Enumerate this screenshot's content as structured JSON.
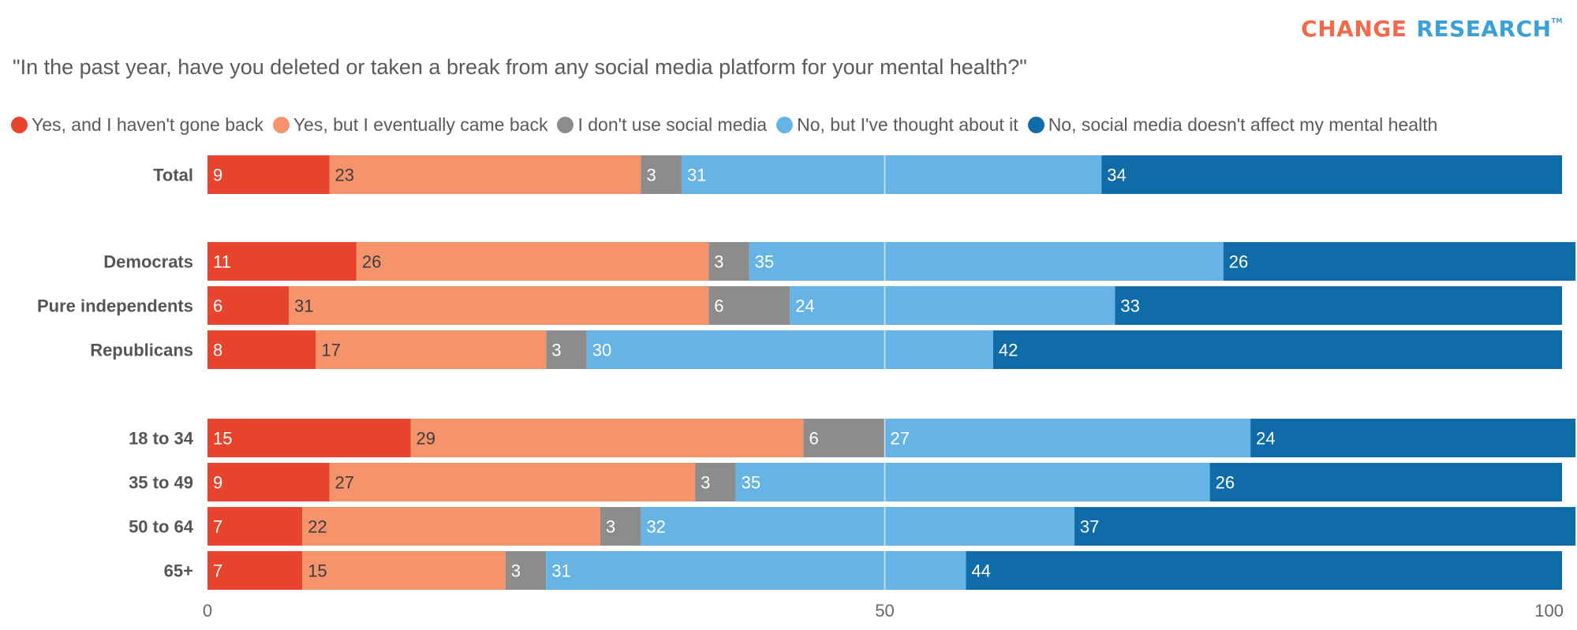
{
  "brand": {
    "word1": "CHANGE",
    "word2": "RESEARCH",
    "tm": "TM"
  },
  "chart_data": {
    "type": "bar",
    "orientation": "horizontal",
    "stacked": true,
    "title": "\"In the past year, have you deleted or taken a break from any social media platform for your mental health?\"",
    "xlabel": "",
    "ylabel": "",
    "xlim": [
      0,
      100
    ],
    "xticks": [
      0,
      50,
      100
    ],
    "grid": "vertical line at 50",
    "legend_position": "top",
    "categories": [
      "Total",
      "Democrats",
      "Pure independents",
      "Republicans",
      "18 to 34",
      "35 to 49",
      "50 to 64",
      "65+"
    ],
    "groups": [
      [
        0
      ],
      [
        1,
        2,
        3
      ],
      [
        4,
        5,
        6,
        7
      ]
    ],
    "series": [
      {
        "name": "Yes, and I haven't gone back",
        "color": "#e8432c",
        "label_color": "#ffffff",
        "values": [
          9,
          11,
          6,
          8,
          15,
          9,
          7,
          7
        ]
      },
      {
        "name": "Yes, but I eventually came back",
        "color": "#f5936c",
        "label_color": "#3d3d3d",
        "values": [
          23,
          26,
          31,
          17,
          29,
          27,
          22,
          15
        ]
      },
      {
        "name": "I don't use social media",
        "color": "#8c8c8c",
        "label_color": "#ffffff",
        "values": [
          3,
          3,
          6,
          3,
          6,
          3,
          3,
          3
        ]
      },
      {
        "name": "No, but I've thought about it",
        "color": "#66b4e5",
        "label_color": "#ffffff",
        "values": [
          31,
          35,
          24,
          30,
          27,
          35,
          32,
          31
        ]
      },
      {
        "name": "No, social media doesn't affect my mental health",
        "color": "#0f6ca8",
        "label_color": "#ffffff",
        "values": [
          34,
          26,
          33,
          42,
          24,
          26,
          37,
          44
        ]
      }
    ]
  }
}
